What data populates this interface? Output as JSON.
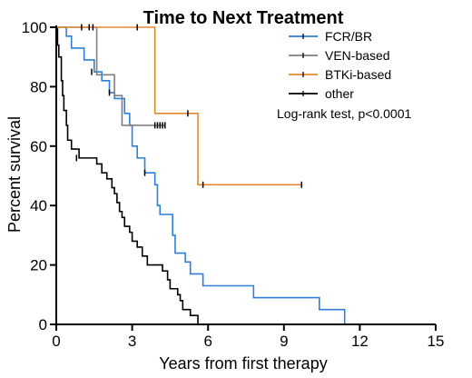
{
  "chart_data": {
    "type": "line",
    "subtype": "kaplan-meier",
    "title": "Time to Next Treatment",
    "xlabel": "Years from first therapy",
    "ylabel": "Percent survival",
    "xlim": [
      0,
      15
    ],
    "ylim": [
      0,
      100
    ],
    "xticks": [
      0,
      3,
      6,
      9,
      12,
      15
    ],
    "yticks": [
      0,
      20,
      40,
      60,
      80,
      100
    ],
    "grid": false,
    "legend_position": "top-right",
    "annotation": "Log-rank test, p<0.0001",
    "series": [
      {
        "name": "FCR/BR",
        "color": "#2f7ed8",
        "steps": [
          [
            0,
            100
          ],
          [
            0.4,
            97
          ],
          [
            0.6,
            93
          ],
          [
            1.1,
            89
          ],
          [
            1.5,
            85
          ],
          [
            1.8,
            82
          ],
          [
            2.1,
            78
          ],
          [
            2.3,
            76
          ],
          [
            2.7,
            71
          ],
          [
            2.9,
            67
          ],
          [
            3.0,
            60
          ],
          [
            3.2,
            56
          ],
          [
            3.5,
            51
          ],
          [
            3.9,
            47
          ],
          [
            4.0,
            40
          ],
          [
            4.1,
            37
          ],
          [
            4.6,
            30
          ],
          [
            4.7,
            24
          ],
          [
            5.1,
            21
          ],
          [
            5.3,
            17
          ],
          [
            5.8,
            13
          ],
          [
            7.8,
            9
          ],
          [
            10.4,
            5
          ],
          [
            11.4,
            0
          ]
        ],
        "censored": [
          [
            1.4,
            85
          ],
          [
            2.1,
            78
          ],
          [
            3.5,
            51
          ]
        ]
      },
      {
        "name": "VEN-based",
        "color": "#808080",
        "steps": [
          [
            0,
            100
          ],
          [
            1.6,
            84
          ],
          [
            2.3,
            77
          ],
          [
            2.6,
            67
          ],
          [
            4.3,
            67
          ]
        ],
        "censored": [
          [
            1.3,
            100
          ],
          [
            1.45,
            100
          ],
          [
            3.9,
            67
          ],
          [
            4.0,
            67
          ],
          [
            4.1,
            67
          ],
          [
            4.2,
            67
          ],
          [
            4.3,
            67
          ]
        ]
      },
      {
        "name": "BTKi-based",
        "color": "#e08a2e",
        "steps": [
          [
            0,
            100
          ],
          [
            3.7,
            100
          ],
          [
            3.9,
            71
          ],
          [
            5.6,
            71
          ],
          [
            5.6,
            47
          ],
          [
            9.7,
            47
          ]
        ],
        "censored": [
          [
            1.0,
            100
          ],
          [
            1.3,
            100
          ],
          [
            3.2,
            100
          ],
          [
            5.2,
            71
          ],
          [
            5.8,
            47
          ],
          [
            9.7,
            47
          ]
        ]
      },
      {
        "name": "other",
        "color": "#000000",
        "steps": [
          [
            0,
            100
          ],
          [
            0.05,
            94
          ],
          [
            0.1,
            90
          ],
          [
            0.2,
            82
          ],
          [
            0.25,
            77
          ],
          [
            0.3,
            72
          ],
          [
            0.4,
            67
          ],
          [
            0.45,
            62
          ],
          [
            0.6,
            59
          ],
          [
            0.9,
            56
          ],
          [
            1.6,
            54
          ],
          [
            1.8,
            51
          ],
          [
            2.0,
            49
          ],
          [
            2.2,
            46
          ],
          [
            2.3,
            44
          ],
          [
            2.4,
            41
          ],
          [
            2.5,
            38
          ],
          [
            2.6,
            36
          ],
          [
            2.7,
            33
          ],
          [
            2.9,
            31
          ],
          [
            3.0,
            28
          ],
          [
            3.2,
            26
          ],
          [
            3.4,
            23
          ],
          [
            3.6,
            20
          ],
          [
            4.2,
            18
          ],
          [
            4.4,
            15
          ],
          [
            4.5,
            12
          ],
          [
            4.8,
            10
          ],
          [
            4.9,
            8
          ],
          [
            5.0,
            5
          ],
          [
            5.3,
            3
          ],
          [
            5.6,
            0
          ]
        ],
        "censored": [
          [
            0.8,
            56
          ]
        ]
      }
    ]
  }
}
